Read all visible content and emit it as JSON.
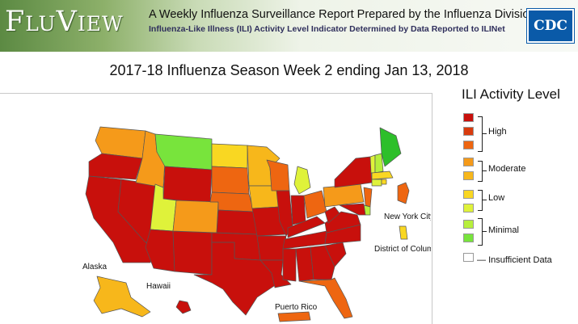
{
  "header": {
    "logo_text": "FluView",
    "tagline": "A Weekly Influenza Surveillance Report Prepared by the Influenza Division",
    "subtitle": "Influenza-Like Illness (ILI) Activity Level Indicator Determined by Data Reported to ILINet",
    "agency_logo": "CDC"
  },
  "map": {
    "title": "2017-18 Influenza Season Week 2 ending Jan 13, 2018",
    "labels": {
      "alaska": "Alaska",
      "hawaii": "Hawaii",
      "puerto_rico": "Puerto Rico",
      "new_york_city": "New York City",
      "dc": "District of Columbia"
    },
    "state_levels": {
      "WA": 7,
      "OR": 10,
      "CA": 10,
      "NV": 10,
      "ID": 7,
      "MT": 2,
      "WY": 10,
      "UT": 4,
      "AZ": 10,
      "NM": 10,
      "CO": 7,
      "ND": 5,
      "SD": 8,
      "NE": 8,
      "KS": 10,
      "OK": 10,
      "TX": 10,
      "MN": 6,
      "IA": 6,
      "MO": 10,
      "AR": 10,
      "LA": 10,
      "WI": 8,
      "IL": 10,
      "MI": 4,
      "IN": 10,
      "OH": 8,
      "KY": 10,
      "TN": 10,
      "MS": 10,
      "AL": 10,
      "GA": 10,
      "FL": 8,
      "SC": 10,
      "NC": 10,
      "VA": 10,
      "WV": 10,
      "PA": 7,
      "NY": 10,
      "VT": 4,
      "NH": 3,
      "ME": 1,
      "MA": 5,
      "CT": 4,
      "RI": 5,
      "NJ": 8,
      "DE": 3,
      "MD": 10,
      "AK": 6,
      "HI": 10,
      "PR": 8,
      "NYC": 8,
      "DC": 5
    }
  },
  "legend": {
    "title": "ILI Activity Level",
    "levels": [
      {
        "level": 10,
        "color": "#c8100c"
      },
      {
        "level": 9,
        "color": "#d83b0e"
      },
      {
        "level": 8,
        "color": "#ee6611"
      },
      {
        "level": 7,
        "color": "#f59a1a"
      },
      {
        "level": 6,
        "color": "#f7b71b"
      },
      {
        "level": 5,
        "color": "#f9d722"
      },
      {
        "level": 4,
        "color": "#dff23a"
      },
      {
        "level": 3,
        "color": "#b7ef3c"
      },
      {
        "level": 2,
        "color": "#78e43c"
      },
      {
        "level": 1,
        "color": "#2dbf2a"
      }
    ],
    "groups": {
      "high": "High",
      "moderate": "Moderate",
      "low": "Low",
      "minimal": "Minimal"
    },
    "insufficient": "Insufficient Data",
    "insufficient_color": "#ffffff"
  }
}
